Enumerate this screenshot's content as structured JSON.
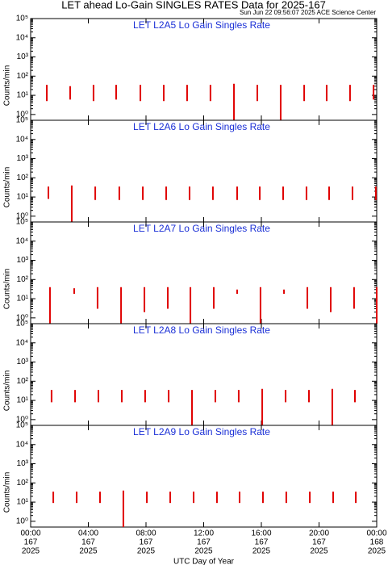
{
  "title": "LET ahead Lo-Gain SINGLES RATES Data for 2025-167",
  "subtitle": "Sun Jun 22 09:56:07 2025 ACE Science Center",
  "chart_data": [
    {
      "type": "range",
      "title": "LET L2A5 Lo Gain Singles Rate",
      "ylabel": "Counts/min",
      "log_scale": true,
      "color": "#e00000",
      "ylim": [
        0.5,
        100000
      ],
      "yticks": [
        {
          "value": 1,
          "label": "10⁰"
        },
        {
          "value": 10,
          "label": "10¹"
        },
        {
          "value": 100,
          "label": "10²"
        },
        {
          "value": 1000,
          "label": "10³"
        },
        {
          "value": 10000,
          "label": "10⁴"
        },
        {
          "value": 100000,
          "label": "10⁵"
        }
      ],
      "x": [
        1.12,
        2.74,
        4.36,
        5.93,
        7.61,
        9.23,
        10.85,
        12.47,
        14.1,
        15.72,
        17.34,
        18.97,
        20.53,
        22.15,
        23.78
      ],
      "high": [
        35,
        30,
        35,
        35,
        35,
        35,
        35,
        35,
        40,
        35,
        35,
        35,
        35,
        35,
        35
      ],
      "low": [
        5,
        6,
        5,
        6,
        5,
        5,
        5,
        5,
        0.5,
        5,
        0.5,
        5,
        5,
        5,
        6
      ]
    },
    {
      "type": "range",
      "title": "LET L2A6 Lo Gain Singles Rate",
      "ylabel": "Counts/min",
      "log_scale": true,
      "color": "#e00000",
      "ylim": [
        0.5,
        100000
      ],
      "yticks": [
        {
          "value": 1,
          "label": "10⁰"
        },
        {
          "value": 10,
          "label": "10¹"
        },
        {
          "value": 100,
          "label": "10²"
        },
        {
          "value": 1000,
          "label": "10³"
        },
        {
          "value": 10000,
          "label": "10⁴"
        },
        {
          "value": 100000,
          "label": "10⁵"
        }
      ],
      "x": [
        1.23,
        2.85,
        4.48,
        6.15,
        7.78,
        9.4,
        11.02,
        12.64,
        14.32,
        15.89,
        17.51,
        19.13,
        20.7,
        22.32,
        23.94
      ],
      "high": [
        35,
        40,
        35,
        35,
        35,
        35,
        35,
        35,
        35,
        35,
        35,
        35,
        35,
        35,
        35
      ],
      "low": [
        8,
        0.5,
        7,
        7,
        7,
        7,
        7,
        7,
        7,
        7,
        7,
        7,
        7,
        7,
        7
      ]
    },
    {
      "type": "range",
      "title": "LET L2A7 Lo Gain Singles Rate",
      "ylabel": "Counts/min",
      "log_scale": true,
      "color": "#e00000",
      "ylim": [
        0.5,
        100000
      ],
      "yticks": [
        {
          "value": 1,
          "label": "10⁰"
        },
        {
          "value": 10,
          "label": "10¹"
        },
        {
          "value": 100,
          "label": "10²"
        },
        {
          "value": 1000,
          "label": "10³"
        },
        {
          "value": 10000,
          "label": "10⁴"
        },
        {
          "value": 100000,
          "label": "10⁵"
        }
      ],
      "x": [
        1.34,
        3.02,
        4.64,
        6.27,
        7.89,
        9.51,
        11.08,
        12.7,
        14.32,
        15.94,
        17.57,
        19.19,
        20.81,
        22.43,
        24.0
      ],
      "high": [
        40,
        35,
        40,
        40,
        40,
        40,
        40,
        40,
        30,
        40,
        30,
        40,
        40,
        40,
        40
      ],
      "low": [
        0.5,
        18,
        3,
        0.5,
        2,
        3,
        0.5,
        3,
        18,
        0.5,
        18,
        3,
        2,
        3,
        0.5
      ]
    },
    {
      "type": "range",
      "title": "LET L2A8 Lo Gain Singles Rate",
      "ylabel": "Counts/min",
      "log_scale": true,
      "color": "#e00000",
      "ylim": [
        0.5,
        100000
      ],
      "yticks": [
        {
          "value": 1,
          "label": "10⁰"
        },
        {
          "value": 10,
          "label": "10¹"
        },
        {
          "value": 100,
          "label": "10²"
        },
        {
          "value": 1000,
          "label": "10³"
        },
        {
          "value": 10000,
          "label": "10⁴"
        },
        {
          "value": 100000,
          "label": "10⁵"
        }
      ],
      "x": [
        1.45,
        3.08,
        4.7,
        6.32,
        7.94,
        9.57,
        11.19,
        12.81,
        14.43,
        16.06,
        17.68,
        19.3,
        20.92,
        22.49
      ],
      "high": [
        35,
        35,
        35,
        35,
        35,
        35,
        35,
        35,
        35,
        40,
        35,
        35,
        40,
        35
      ],
      "low": [
        8,
        8,
        8,
        8,
        8,
        8,
        0.5,
        8,
        8,
        0.5,
        8,
        8,
        0.5,
        8
      ]
    },
    {
      "type": "range",
      "title": "LET L2A9 Lo Gain Singles Rate",
      "ylabel": "Counts/min",
      "log_scale": true,
      "color": "#e00000",
      "ylim": [
        0.5,
        100000
      ],
      "yticks": [
        {
          "value": 1,
          "label": "10⁰"
        },
        {
          "value": 10,
          "label": "10¹"
        },
        {
          "value": 100,
          "label": "10²"
        },
        {
          "value": 1000,
          "label": "10³"
        },
        {
          "value": 10000,
          "label": "10⁴"
        },
        {
          "value": 100000,
          "label": "10⁵"
        }
      ],
      "x": [
        1.57,
        3.19,
        4.81,
        6.43,
        8.06,
        9.68,
        11.3,
        12.92,
        14.49,
        16.11,
        17.73,
        19.36,
        20.98,
        22.55
      ],
      "high": [
        35,
        35,
        35,
        40,
        35,
        35,
        35,
        35,
        35,
        35,
        35,
        35,
        35,
        35
      ],
      "low": [
        9,
        9,
        9,
        0.5,
        9,
        9,
        9,
        9,
        9,
        9,
        9,
        9,
        9,
        9
      ],
      "xlabel": "UTC Day of Year",
      "xlim": [
        0,
        24
      ],
      "xticks": [
        {
          "value": 0,
          "label": "00:00"
        },
        {
          "value": 4,
          "label": "04:00"
        },
        {
          "value": 8,
          "label": "08:00"
        },
        {
          "value": 12,
          "label": "12:00"
        },
        {
          "value": 16,
          "label": "16:00"
        },
        {
          "value": 20,
          "label": "20:00"
        },
        {
          "value": 24,
          "label": "00:00"
        }
      ],
      "xtick_days": [
        "167",
        "167",
        "167",
        "167",
        "167",
        "167",
        "168"
      ],
      "xtick_years": [
        "2025",
        "2025",
        "2025",
        "2025",
        "2025",
        "2025",
        "2025"
      ]
    }
  ]
}
